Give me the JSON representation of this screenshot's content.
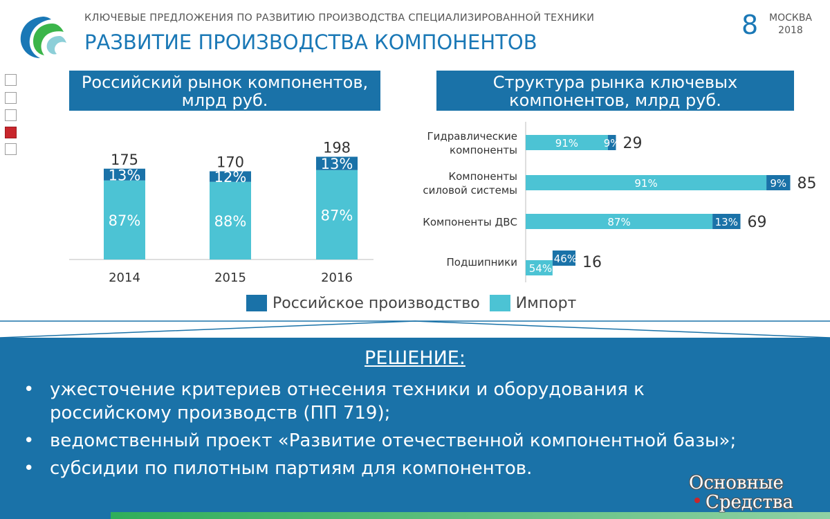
{
  "header": {
    "subtitle": "КЛЮЧЕВЫЕ ПРЕДЛОЖЕНИЯ ПО РАЗВИТИЮ ПРОИЗВОДСТВА СПЕЦИАЛИЗИРОВАННОЙ ТЕХНИКИ",
    "title": "РАЗВИТИЕ ПРОИЗВОДСТВА КОМПОНЕНТОВ",
    "page_number": "8",
    "city": "МОСКВА",
    "year": "2018"
  },
  "colors": {
    "russian": "#1a72a8",
    "import": "#4cc3d4",
    "accent": "#1a78b6",
    "nav_active": "#c8262c"
  },
  "nav": {
    "count": 5,
    "active_index": 3
  },
  "chart_data": [
    {
      "type": "bar",
      "stacked": true,
      "title": "Российский рынок компонентов, млрд руб.",
      "categories": [
        "2014",
        "2015",
        "2016"
      ],
      "totals": [
        175,
        170,
        198
      ],
      "series": [
        {
          "name": "Российское производство",
          "percent_labels": [
            "13%",
            "12%",
            "13%"
          ]
        },
        {
          "name": "Импорт",
          "percent_labels": [
            "87%",
            "88%",
            "87%"
          ]
        }
      ]
    },
    {
      "type": "bar",
      "orientation": "horizontal",
      "stacked": true,
      "title": "Структура рынка ключевых компонентов, млрд руб.",
      "categories": [
        "Гидравлические компоненты",
        "Компоненты силовой системы",
        "Компоненты ДВС",
        "Подшипники"
      ],
      "totals": [
        29,
        85,
        69,
        16
      ],
      "series": [
        {
          "name": "Импорт",
          "percent_labels": [
            "91%",
            "91%",
            "87%",
            "54%"
          ]
        },
        {
          "name": "Российское производство",
          "percent_labels": [
            "9%",
            "9%",
            "13%",
            "46%"
          ]
        }
      ]
    }
  ],
  "legend": {
    "russian_label": "Российское производство",
    "import_label": "Импорт"
  },
  "solution": {
    "title": "РЕШЕНИЕ:",
    "items": [
      "ужесточение критериев отнесения техники и оборудования к российскому производств (ПП 719);",
      "ведомственный проект «Развитие отечественной компонентной базы»;",
      "субсидии по пилотным партиям для компонентов."
    ],
    "bullet": "•"
  },
  "watermark": {
    "line1": "Основные",
    "line2": "Средства"
  }
}
